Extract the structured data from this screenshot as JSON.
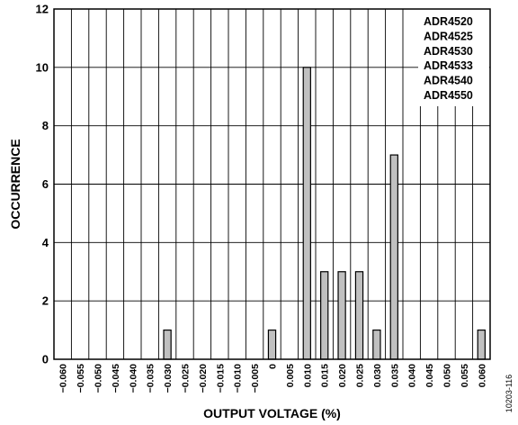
{
  "chart_data": {
    "type": "bar",
    "xlabel": "OUTPUT VOLTAGE (%)",
    "ylabel": "OCCURRENCE",
    "ylim": [
      0,
      12
    ],
    "yticks": [
      "0",
      "2",
      "4",
      "6",
      "8",
      "10",
      "12"
    ],
    "grid": true,
    "categories": [
      "−0.060",
      "−0.055",
      "−0.050",
      "−0.045",
      "−0.040",
      "−0.035",
      "−0.030",
      "−0.025",
      "−0.020",
      "−0.015",
      "−0.010",
      "−0.005",
      "0",
      "0.005",
      "0.010",
      "0.015",
      "0.020",
      "0.025",
      "0.030",
      "0.035",
      "0.040",
      "0.045",
      "0.050",
      "0.055",
      "0.060"
    ],
    "values": [
      0,
      0,
      0,
      0,
      0,
      0,
      1,
      0,
      0,
      0,
      0,
      0,
      1,
      0,
      10,
      3,
      3,
      3,
      1,
      7,
      0,
      0,
      0,
      0,
      1
    ],
    "bar_color": "#c0c0c0",
    "legend_placement": "top-right",
    "legend": [
      "ADR4520",
      "ADR4525",
      "ADR4530",
      "ADR4533",
      "ADR4540",
      "ADR4550"
    ]
  },
  "figure_code": "10203-116"
}
